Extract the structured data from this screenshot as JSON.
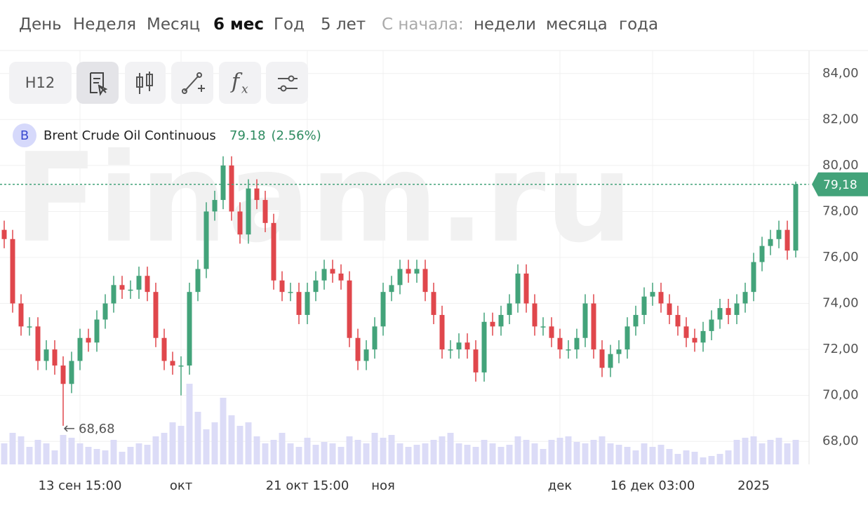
{
  "tabs": [
    "День",
    "Неделя",
    "Месяц",
    "6 мес",
    "Год",
    "5 лет"
  ],
  "since_label": "С начала:",
  "since_tabs": [
    "недели",
    "месяца",
    "года"
  ],
  "toolbar": {
    "interval": "H12"
  },
  "chart_data": {
    "type": "candlestick",
    "instrument_badge": "B",
    "title": "Brent Crude Oil Continuous",
    "legend_value": "79.18",
    "legend_change": "(2.56%)",
    "watermark": "Finam.ru",
    "up_color": "#43a37a",
    "down_color": "#e0474c",
    "volume_color": "#dcdcf7",
    "grid": true,
    "categories": [
      null,
      null,
      null,
      null,
      null,
      null,
      null,
      null,
      null,
      "13 сен 15:00",
      null,
      null,
      null,
      null,
      null,
      null,
      null,
      null,
      null,
      null,
      null,
      "окт",
      null,
      null,
      null,
      null,
      null,
      null,
      null,
      null,
      null,
      null,
      null,
      null,
      null,
      null,
      "21 окт 15:00",
      null,
      null,
      null,
      null,
      null,
      null,
      null,
      null,
      "ноя",
      null,
      null,
      null,
      null,
      null,
      null,
      null,
      null,
      null,
      null,
      null,
      null,
      null,
      null,
      null,
      null,
      null,
      null,
      null,
      null,
      "дек",
      null,
      null,
      null,
      null,
      null,
      null,
      null,
      null,
      null,
      null,
      "16 дек 03:00",
      null,
      null,
      null,
      null,
      null,
      null,
      null,
      null,
      null,
      null,
      null,
      "2025",
      null,
      null,
      null,
      null,
      null
    ],
    "open": [
      77.2,
      76.8,
      74.0,
      73.0,
      73.0,
      71.5,
      72.0,
      71.3,
      70.5,
      71.5,
      72.5,
      72.3,
      73.3,
      74.0,
      74.8,
      74.6,
      74.6,
      75.2,
      74.5,
      72.5,
      71.5,
      71.3,
      71.3,
      74.5,
      75.5,
      78.0,
      78.5,
      80.0,
      78.0,
      77.0,
      79.0,
      78.5,
      77.5,
      75.0,
      74.5,
      74.5,
      73.5,
      74.5,
      75.0,
      75.5,
      75.3,
      75.0,
      72.5,
      71.5,
      72.0,
      73.0,
      74.5,
      74.8,
      75.5,
      75.3,
      75.5,
      74.5,
      73.5,
      72.0,
      72.0,
      72.3,
      72.0,
      71.0,
      73.2,
      73.0,
      73.5,
      74.0,
      75.3,
      74.0,
      73.0,
      73.0,
      72.5,
      72.0,
      72.0,
      72.5,
      74.0,
      72.0,
      71.2,
      71.8,
      72.0,
      73.0,
      73.5,
      74.3,
      74.5,
      74.0,
      73.5,
      73.0,
      72.5,
      72.3,
      72.8,
      73.3,
      73.8,
      73.5,
      74.0,
      74.5,
      75.8,
      76.5,
      76.8,
      77.2,
      76.3
    ],
    "high": [
      77.6,
      77.2,
      74.4,
      73.4,
      73.4,
      72.4,
      72.4,
      71.7,
      71.9,
      72.9,
      72.9,
      73.7,
      74.4,
      75.2,
      75.2,
      75.0,
      75.6,
      75.6,
      74.9,
      72.9,
      71.9,
      71.7,
      74.9,
      75.9,
      78.4,
      78.9,
      80.4,
      80.4,
      78.4,
      79.4,
      79.4,
      78.9,
      77.9,
      75.4,
      74.9,
      74.9,
      74.9,
      75.4,
      75.9,
      75.9,
      75.7,
      75.4,
      72.9,
      72.4,
      73.4,
      74.9,
      75.2,
      75.9,
      75.9,
      75.9,
      75.9,
      74.9,
      73.9,
      72.4,
      72.7,
      72.7,
      72.4,
      73.6,
      73.6,
      73.9,
      74.4,
      75.7,
      75.7,
      74.4,
      73.4,
      73.4,
      72.9,
      72.4,
      72.9,
      74.4,
      74.4,
      72.4,
      72.2,
      72.4,
      73.4,
      73.9,
      74.7,
      74.9,
      74.9,
      74.4,
      73.9,
      73.4,
      72.9,
      73.2,
      73.7,
      74.2,
      74.2,
      74.4,
      74.9,
      76.2,
      76.9,
      77.2,
      77.6,
      77.6,
      79.3
    ],
    "low": [
      76.4,
      73.6,
      72.6,
      72.6,
      71.1,
      71.1,
      70.9,
      68.68,
      70.1,
      71.1,
      71.9,
      71.9,
      72.9,
      73.6,
      74.2,
      74.2,
      74.2,
      74.1,
      72.1,
      71.1,
      70.9,
      70.0,
      70.9,
      74.1,
      75.1,
      77.6,
      78.1,
      77.6,
      76.6,
      76.6,
      78.1,
      77.1,
      74.6,
      74.1,
      74.1,
      73.1,
      73.1,
      74.1,
      74.6,
      74.9,
      74.6,
      72.1,
      71.1,
      71.1,
      71.6,
      72.6,
      74.1,
      74.4,
      74.9,
      74.9,
      74.1,
      73.1,
      71.6,
      71.6,
      71.6,
      71.6,
      70.6,
      70.6,
      72.6,
      72.6,
      73.1,
      73.6,
      73.6,
      72.6,
      72.6,
      72.1,
      71.6,
      71.6,
      71.6,
      72.1,
      71.6,
      70.8,
      70.8,
      71.4,
      71.6,
      72.6,
      73.1,
      73.9,
      73.6,
      73.1,
      72.6,
      72.1,
      71.9,
      71.9,
      72.4,
      72.9,
      73.1,
      73.1,
      73.6,
      74.1,
      75.4,
      76.1,
      76.4,
      75.9,
      76.0
    ],
    "close": [
      76.8,
      74.0,
      73.0,
      73.0,
      71.5,
      72.0,
      71.3,
      70.5,
      71.5,
      72.5,
      72.3,
      73.3,
      74.0,
      74.8,
      74.6,
      74.6,
      75.2,
      74.5,
      72.5,
      71.5,
      71.3,
      71.3,
      74.5,
      75.5,
      78.0,
      78.5,
      80.0,
      78.0,
      77.0,
      79.0,
      78.5,
      77.5,
      75.0,
      74.5,
      74.5,
      73.5,
      74.5,
      75.0,
      75.5,
      75.3,
      75.0,
      72.5,
      71.5,
      72.0,
      73.0,
      74.5,
      74.8,
      75.5,
      75.3,
      75.5,
      74.5,
      73.5,
      72.0,
      72.0,
      72.3,
      72.0,
      71.0,
      73.2,
      73.0,
      73.5,
      74.0,
      75.3,
      74.0,
      73.0,
      73.0,
      72.5,
      72.0,
      72.0,
      72.5,
      74.0,
      72.0,
      71.2,
      71.8,
      72.0,
      73.0,
      73.5,
      74.3,
      74.5,
      74.0,
      73.5,
      73.0,
      72.5,
      72.3,
      72.8,
      73.3,
      73.8,
      73.5,
      74.0,
      74.5,
      75.8,
      76.5,
      76.8,
      77.2,
      76.3,
      79.18
    ],
    "volume": [
      30,
      45,
      40,
      25,
      35,
      30,
      20,
      42,
      38,
      30,
      25,
      22,
      20,
      35,
      18,
      25,
      30,
      28,
      40,
      45,
      60,
      55,
      115,
      75,
      50,
      60,
      95,
      70,
      55,
      60,
      40,
      30,
      35,
      45,
      30,
      25,
      38,
      28,
      32,
      30,
      25,
      40,
      35,
      30,
      45,
      38,
      42,
      30,
      25,
      28,
      30,
      35,
      40,
      45,
      30,
      28,
      25,
      35,
      30,
      25,
      28,
      40,
      35,
      30,
      22,
      35,
      38,
      40,
      32,
      30,
      35,
      40,
      30,
      28,
      25,
      20,
      30,
      25,
      28,
      22,
      15,
      20,
      18,
      10,
      12,
      15,
      20,
      35,
      38,
      40,
      30,
      35,
      38,
      30,
      35
    ],
    "min_value": 68.68,
    "min_label": "68,68",
    "last_value": 79.18,
    "last_label": "79,18",
    "ylim": [
      67,
      85
    ],
    "yticks": [
      {
        "value": 68,
        "label": "68,00"
      },
      {
        "value": 70,
        "label": "70,00"
      },
      {
        "value": 72,
        "label": "72,00"
      },
      {
        "value": 74,
        "label": "74,00"
      },
      {
        "value": 76,
        "label": "76,00"
      },
      {
        "value": 78,
        "label": "78,00"
      },
      {
        "value": 80,
        "label": "80,00"
      },
      {
        "value": 82,
        "label": "82,00"
      },
      {
        "value": 84,
        "label": "84,00"
      }
    ]
  }
}
